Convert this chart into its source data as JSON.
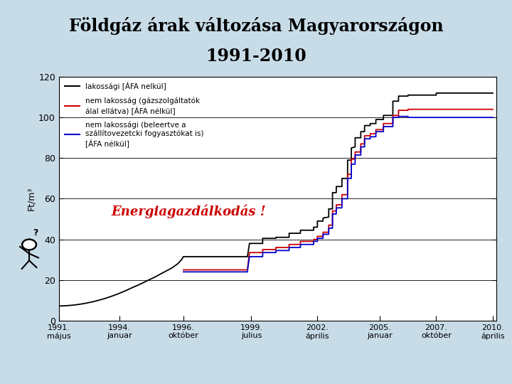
{
  "title_line1": "Földgáz árak változása Magyarországon",
  "title_line2": "1991-2010",
  "ylabel": "Ft/m³",
  "annotation": "Energiagazdálkodás !",
  "annotation_color": "#cc0000",
  "background_color": "#c8dce8",
  "plot_bg_color": "#ffffff",
  "ylim": [
    0,
    120
  ],
  "yticks": [
    0,
    20,
    40,
    60,
    80,
    100,
    120
  ],
  "xtick_labels": [
    "1991.\nmájus",
    "1994.\njanuar",
    "1996.\noktóber",
    "1999.\njulius",
    "2002.\náprilis",
    "2005.\njanuar",
    "2007.\noktóber",
    "2010.\náprilis"
  ],
  "xtick_positions": [
    0,
    32,
    66,
    102,
    137,
    170,
    200,
    230
  ],
  "legend_entries": [
    "lakossági [ÁFA nelkül]",
    "nem lakosság (gázszolgáltatók\nálal ellátva) [ÁFA nélkül]",
    "nem lakossági (beleertve a\nszállítovezetcki fogyasztókat is)\n[ÁFA nélkül]"
  ],
  "legend_colors": [
    "#000000",
    "#cc0000",
    "#0000cc"
  ],
  "black_line": [
    [
      0,
      7.2
    ],
    [
      3,
      7.3
    ],
    [
      6,
      7.5
    ],
    [
      9,
      7.8
    ],
    [
      12,
      8.2
    ],
    [
      15,
      8.7
    ],
    [
      18,
      9.3
    ],
    [
      21,
      10.0
    ],
    [
      24,
      10.8
    ],
    [
      27,
      11.7
    ],
    [
      30,
      12.7
    ],
    [
      33,
      13.8
    ],
    [
      36,
      15.0
    ],
    [
      39,
      16.3
    ],
    [
      42,
      17.5
    ],
    [
      45,
      18.8
    ],
    [
      48,
      20.2
    ],
    [
      51,
      21.5
    ],
    [
      54,
      23.0
    ],
    [
      57,
      24.5
    ],
    [
      60,
      26.0
    ],
    [
      63,
      28.0
    ],
    [
      65,
      30.0
    ],
    [
      66,
      31.5
    ],
    [
      66.01,
      31.5
    ],
    [
      90,
      31.5
    ],
    [
      100,
      31.5
    ],
    [
      100.01,
      32.0
    ],
    [
      101,
      38.0
    ],
    [
      101.01,
      38.0
    ],
    [
      108,
      38.0
    ],
    [
      108.01,
      40.5
    ],
    [
      115,
      40.5
    ],
    [
      115.01,
      41.0
    ],
    [
      122,
      41.0
    ],
    [
      122.01,
      43.0
    ],
    [
      128,
      43.0
    ],
    [
      128.01,
      44.5
    ],
    [
      135,
      44.5
    ],
    [
      135.01,
      46.0
    ],
    [
      137,
      46.0
    ],
    [
      137.01,
      49.0
    ],
    [
      140,
      49.0
    ],
    [
      140.01,
      50.5
    ],
    [
      143,
      51.0
    ],
    [
      143.01,
      55.0
    ],
    [
      145,
      55.0
    ],
    [
      145.01,
      63.0
    ],
    [
      147,
      63.0
    ],
    [
      147.01,
      66.0
    ],
    [
      150,
      66.0
    ],
    [
      150.01,
      70.0
    ],
    [
      153,
      70.0
    ],
    [
      153.01,
      79.0
    ],
    [
      155,
      79.0
    ],
    [
      155.01,
      85.0
    ],
    [
      157,
      85.5
    ],
    [
      157.01,
      90.0
    ],
    [
      160,
      90.0
    ],
    [
      160.01,
      93.0
    ],
    [
      162,
      93.0
    ],
    [
      162.01,
      96.0
    ],
    [
      165,
      96.0
    ],
    [
      165.01,
      97.0
    ],
    [
      168,
      97.0
    ],
    [
      168.01,
      99.0
    ],
    [
      172,
      99.0
    ],
    [
      172.01,
      101.0
    ],
    [
      177,
      101.0
    ],
    [
      177.01,
      108.0
    ],
    [
      180,
      108.0
    ],
    [
      180.01,
      110.5
    ],
    [
      185,
      110.5
    ],
    [
      185.01,
      111.0
    ],
    [
      200,
      111.0
    ],
    [
      200.01,
      112.0
    ],
    [
      230,
      112.0
    ]
  ],
  "red_line": [
    [
      66,
      25.0
    ],
    [
      66.01,
      25.0
    ],
    [
      100,
      25.0
    ],
    [
      100.01,
      26.0
    ],
    [
      101,
      33.5
    ],
    [
      101.01,
      33.5
    ],
    [
      108,
      33.5
    ],
    [
      108.01,
      35.0
    ],
    [
      115,
      35.0
    ],
    [
      115.01,
      36.0
    ],
    [
      122,
      36.0
    ],
    [
      122.01,
      37.5
    ],
    [
      128,
      37.5
    ],
    [
      128.01,
      39.0
    ],
    [
      135,
      39.0
    ],
    [
      135.01,
      40.0
    ],
    [
      137,
      40.0
    ],
    [
      137.01,
      41.5
    ],
    [
      140,
      41.5
    ],
    [
      140.01,
      43.5
    ],
    [
      143,
      43.5
    ],
    [
      143.01,
      47.0
    ],
    [
      145,
      47.0
    ],
    [
      145.01,
      54.0
    ],
    [
      147,
      54.0
    ],
    [
      147.01,
      57.0
    ],
    [
      150,
      57.0
    ],
    [
      150.01,
      62.0
    ],
    [
      153,
      62.0
    ],
    [
      153.01,
      72.0
    ],
    [
      155,
      72.0
    ],
    [
      155.01,
      79.5
    ],
    [
      157,
      79.5
    ],
    [
      157.01,
      83.0
    ],
    [
      160,
      83.0
    ],
    [
      160.01,
      87.0
    ],
    [
      162,
      87.0
    ],
    [
      162.01,
      91.0
    ],
    [
      165,
      91.0
    ],
    [
      165.01,
      92.0
    ],
    [
      168,
      92.0
    ],
    [
      168.01,
      94.0
    ],
    [
      172,
      94.0
    ],
    [
      172.01,
      97.0
    ],
    [
      177,
      97.0
    ],
    [
      177.01,
      101.0
    ],
    [
      180,
      101.0
    ],
    [
      180.01,
      103.5
    ],
    [
      185,
      103.5
    ],
    [
      185.01,
      104.0
    ],
    [
      230,
      104.0
    ]
  ],
  "blue_line": [
    [
      66,
      24.0
    ],
    [
      66.01,
      24.0
    ],
    [
      100,
      24.0
    ],
    [
      100.01,
      25.0
    ],
    [
      101,
      31.5
    ],
    [
      101.01,
      31.5
    ],
    [
      108,
      31.5
    ],
    [
      108.01,
      33.5
    ],
    [
      115,
      33.5
    ],
    [
      115.01,
      34.5
    ],
    [
      122,
      34.5
    ],
    [
      122.01,
      36.0
    ],
    [
      128,
      36.0
    ],
    [
      128.01,
      37.5
    ],
    [
      135,
      37.5
    ],
    [
      135.01,
      39.0
    ],
    [
      137,
      39.0
    ],
    [
      137.01,
      40.5
    ],
    [
      140,
      40.5
    ],
    [
      140.01,
      42.5
    ],
    [
      143,
      42.5
    ],
    [
      143.01,
      45.5
    ],
    [
      145,
      45.5
    ],
    [
      145.01,
      52.5
    ],
    [
      147,
      52.5
    ],
    [
      147.01,
      55.5
    ],
    [
      150,
      55.5
    ],
    [
      150.01,
      60.0
    ],
    [
      153,
      60.0
    ],
    [
      153.01,
      70.0
    ],
    [
      155,
      70.0
    ],
    [
      155.01,
      77.0
    ],
    [
      157,
      77.0
    ],
    [
      157.01,
      81.5
    ],
    [
      160,
      81.5
    ],
    [
      160.01,
      85.5
    ],
    [
      162,
      85.5
    ],
    [
      162.01,
      89.5
    ],
    [
      165,
      89.5
    ],
    [
      165.01,
      90.5
    ],
    [
      168,
      90.5
    ],
    [
      168.01,
      93.0
    ],
    [
      172,
      93.0
    ],
    [
      172.01,
      95.5
    ],
    [
      177,
      95.5
    ],
    [
      177.01,
      100.0
    ],
    [
      180,
      100.0
    ],
    [
      180.01,
      100.5
    ],
    [
      185,
      100.5
    ],
    [
      185.01,
      100.0
    ],
    [
      230,
      100.0
    ]
  ]
}
